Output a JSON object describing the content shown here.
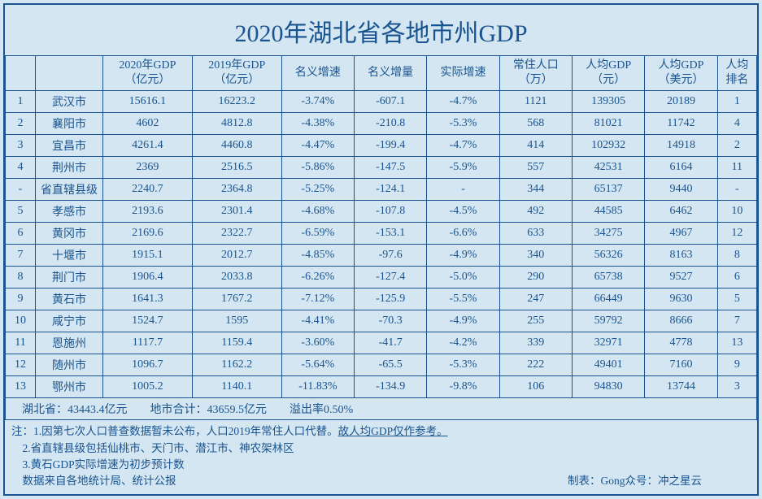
{
  "title": "2020年湖北省各地市州GDP",
  "columns": [
    "",
    "",
    "2020年GDP（亿元）",
    "2019年GDP（亿元）",
    "名义增速",
    "名义增量",
    "实际增速",
    "常住人口（万）",
    "人均GDP（元）",
    "人均GDP（美元）",
    "人均排名"
  ],
  "rows": [
    [
      "1",
      "武汉市",
      "15616.1",
      "16223.2",
      "-3.74%",
      "-607.1",
      "-4.7%",
      "1121",
      "139305",
      "20189",
      "1"
    ],
    [
      "2",
      "襄阳市",
      "4602",
      "4812.8",
      "-4.38%",
      "-210.8",
      "-5.3%",
      "568",
      "81021",
      "11742",
      "4"
    ],
    [
      "3",
      "宜昌市",
      "4261.4",
      "4460.8",
      "-4.47%",
      "-199.4",
      "-4.7%",
      "414",
      "102932",
      "14918",
      "2"
    ],
    [
      "4",
      "荆州市",
      "2369",
      "2516.5",
      "-5.86%",
      "-147.5",
      "-5.9%",
      "557",
      "42531",
      "6164",
      "11"
    ],
    [
      "-",
      "省直辖县级",
      "2240.7",
      "2364.8",
      "-5.25%",
      "-124.1",
      "-",
      "344",
      "65137",
      "9440",
      "-"
    ],
    [
      "5",
      "孝感市",
      "2193.6",
      "2301.4",
      "-4.68%",
      "-107.8",
      "-4.5%",
      "492",
      "44585",
      "6462",
      "10"
    ],
    [
      "6",
      "黄冈市",
      "2169.6",
      "2322.7",
      "-6.59%",
      "-153.1",
      "-6.6%",
      "633",
      "34275",
      "4967",
      "12"
    ],
    [
      "7",
      "十堰市",
      "1915.1",
      "2012.7",
      "-4.85%",
      "-97.6",
      "-4.9%",
      "340",
      "56326",
      "8163",
      "8"
    ],
    [
      "8",
      "荆门市",
      "1906.4",
      "2033.8",
      "-6.26%",
      "-127.4",
      "-5.0%",
      "290",
      "65738",
      "9527",
      "6"
    ],
    [
      "9",
      "黄石市",
      "1641.3",
      "1767.2",
      "-7.12%",
      "-125.9",
      "-5.5%",
      "247",
      "66449",
      "9630",
      "5"
    ],
    [
      "10",
      "咸宁市",
      "1524.7",
      "1595",
      "-4.41%",
      "-70.3",
      "-4.9%",
      "255",
      "59792",
      "8666",
      "7"
    ],
    [
      "11",
      "恩施州",
      "1117.7",
      "1159.4",
      "-3.60%",
      "-41.7",
      "-4.2%",
      "339",
      "32971",
      "4778",
      "13"
    ],
    [
      "12",
      "随州市",
      "1096.7",
      "1162.2",
      "-5.64%",
      "-65.5",
      "-5.3%",
      "222",
      "49401",
      "7160",
      "9"
    ],
    [
      "13",
      "鄂州市",
      "1005.2",
      "1140.1",
      "-11.83%",
      "-134.9",
      "-9.8%",
      "106",
      "94830",
      "13744",
      "3"
    ]
  ],
  "summary": {
    "province_total": "湖北省：43443.4亿元",
    "city_total": "地市合计：43659.5亿元",
    "overflow": "溢出率0.50%"
  },
  "notes": {
    "prefix": "注：",
    "line1a": "1.因第七次人口普查数据暂未公布，人口2019年常住人口代替。",
    "line1b": "故人均GDP仅作参考。",
    "line2": "2.省直辖县级包括仙桃市、天门市、潜江市、神农架林区",
    "line3": "3.黄石GDP实际增速为初步预计数",
    "source": "数据来自各地统计局、统计公报",
    "credit": "制表：Gong众号：冲之星云"
  },
  "styles": {
    "background": "#d4e6f1",
    "border": "#1a5490",
    "text": "#1a5490"
  }
}
